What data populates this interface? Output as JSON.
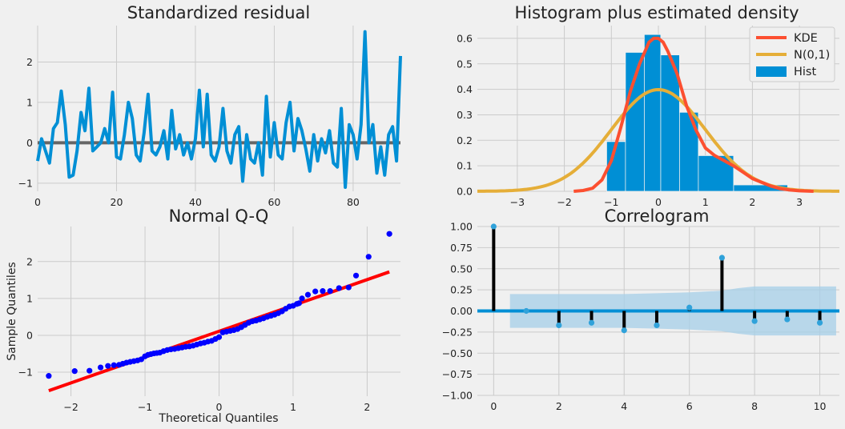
{
  "chart_data": [
    {
      "type": "line",
      "title": "Standardized residual",
      "xlabel": "",
      "ylabel": "",
      "xlim": [
        0,
        92
      ],
      "ylim": [
        -1.2,
        2.9
      ],
      "xticks": [
        0,
        20,
        40,
        60,
        80
      ],
      "yticks": [
        -1,
        0,
        1,
        2
      ],
      "grid": true,
      "colors": {
        "line": "#008fd5",
        "baseline": "#666666"
      },
      "x": [
        0,
        1,
        2,
        3,
        4,
        5,
        6,
        7,
        8,
        9,
        10,
        11,
        12,
        13,
        14,
        15,
        16,
        17,
        18,
        19,
        20,
        21,
        22,
        23,
        24,
        25,
        26,
        27,
        28,
        29,
        30,
        31,
        32,
        33,
        34,
        35,
        36,
        37,
        38,
        39,
        40,
        41,
        42,
        43,
        44,
        45,
        46,
        47,
        48,
        49,
        50,
        51,
        52,
        53,
        54,
        55,
        56,
        57,
        58,
        59,
        60,
        61,
        62,
        63,
        64,
        65,
        66,
        67,
        68,
        69,
        70,
        71,
        72,
        73,
        74,
        75,
        76,
        77,
        78,
        79,
        80,
        81,
        82,
        83,
        84,
        85,
        86,
        87,
        88,
        89,
        90,
        91,
        92
      ],
      "series": [
        {
          "values": [
            -0.45,
            0.1,
            -0.2,
            -0.5,
            0.35,
            0.5,
            1.28,
            0.45,
            -0.85,
            -0.8,
            -0.2,
            0.75,
            0.3,
            1.35,
            -0.2,
            -0.1,
            0.0,
            0.35,
            0.0,
            1.25,
            -0.35,
            -0.4,
            0.2,
            1.0,
            0.6,
            -0.3,
            -0.45,
            0.25,
            1.2,
            -0.2,
            -0.3,
            -0.1,
            0.3,
            -0.4,
            0.8,
            -0.15,
            0.2,
            -0.3,
            0.0,
            -0.4,
            0.1,
            1.3,
            -0.1,
            1.2,
            -0.3,
            -0.45,
            -0.1,
            0.85,
            -0.2,
            -0.5,
            0.2,
            0.4,
            -0.95,
            0.2,
            -0.4,
            -0.5,
            0.0,
            -0.8,
            1.15,
            -0.35,
            0.5,
            -0.3,
            -0.4,
            0.5,
            1.0,
            -0.2,
            0.6,
            0.3,
            -0.15,
            -0.7,
            0.2,
            -0.45,
            0.1,
            -0.25,
            0.3,
            -0.5,
            -0.6,
            0.85,
            -1.1,
            0.45,
            0.2,
            -0.4,
            0.45,
            2.75,
            0.0,
            0.45,
            -0.75,
            -0.1,
            -0.8,
            0.2,
            0.4,
            -0.45,
            2.15
          ]
        }
      ]
    },
    {
      "type": "bar",
      "title": "Histogram plus estimated density",
      "xlabel": "",
      "ylabel": "",
      "xlim": [
        -3.85,
        3.85
      ],
      "ylim": [
        0,
        0.65
      ],
      "xticks": [
        -3,
        -2,
        -1,
        0,
        1,
        2,
        3
      ],
      "yticks": [
        0.0,
        0.1,
        0.2,
        0.3,
        0.4,
        0.5,
        0.6
      ],
      "grid": true,
      "legend": "top-right",
      "legend_entries": [
        "KDE",
        "N(0,1)",
        "Hist"
      ],
      "colors": {
        "hist": "#008fd5",
        "kde": "#fc4f30",
        "norm": "#e5ae38"
      },
      "hist_bins": [
        {
          "x0": -1.1,
          "x1": -0.7,
          "value": 0.195
        },
        {
          "x0": -0.7,
          "x1": -0.3,
          "value": 0.545
        },
        {
          "x0": -0.3,
          "x1": 0.05,
          "value": 0.615
        },
        {
          "x0": 0.05,
          "x1": 0.45,
          "value": 0.535
        },
        {
          "x0": 0.45,
          "x1": 0.85,
          "value": 0.31
        },
        {
          "x0": 0.85,
          "x1": 1.6,
          "value": 0.14
        },
        {
          "x0": 1.6,
          "x1": 2.75,
          "value": 0.025
        }
      ],
      "kde": {
        "x": [
          -1.8,
          -1.6,
          -1.4,
          -1.2,
          -1.0,
          -0.8,
          -0.6,
          -0.4,
          -0.2,
          -0.1,
          0.0,
          0.1,
          0.2,
          0.4,
          0.6,
          0.8,
          1.0,
          1.2,
          1.4,
          1.6,
          1.8,
          2.0,
          2.2,
          2.4,
          2.6,
          2.8,
          3.0,
          3.3
        ],
        "y": [
          0.0,
          0.003,
          0.012,
          0.045,
          0.12,
          0.25,
          0.39,
          0.5,
          0.585,
          0.6,
          0.6,
          0.585,
          0.55,
          0.46,
          0.335,
          0.24,
          0.17,
          0.14,
          0.12,
          0.1,
          0.075,
          0.05,
          0.035,
          0.02,
          0.01,
          0.005,
          0.002,
          0.0
        ]
      },
      "norm": {
        "mean": 0,
        "sd": 1
      }
    },
    {
      "type": "scatter",
      "title": "Normal Q-Q",
      "xlabel": "Theoretical Quantiles",
      "ylabel": "Sample Quantiles",
      "xlim": [
        -2.45,
        2.45
      ],
      "ylim": [
        -1.65,
        2.95
      ],
      "xticks": [
        -2,
        -1,
        0,
        1,
        2
      ],
      "yticks": [
        -1,
        0,
        1,
        2
      ],
      "grid": true,
      "colors": {
        "points": "#0000ff",
        "line": "#ff0000"
      },
      "reference_line": {
        "x": [
          -2.3,
          2.3
        ],
        "y": [
          -1.5,
          1.72
        ]
      },
      "x": [
        -2.3,
        -1.95,
        -1.75,
        -1.6,
        -1.5,
        -1.42,
        -1.35,
        -1.3,
        -1.25,
        -1.2,
        -1.15,
        -1.1,
        -1.05,
        -1.0,
        -0.96,
        -0.92,
        -0.88,
        -0.84,
        -0.8,
        -0.75,
        -0.7,
        -0.65,
        -0.6,
        -0.55,
        -0.5,
        -0.45,
        -0.4,
        -0.35,
        -0.3,
        -0.25,
        -0.2,
        -0.15,
        -0.1,
        -0.05,
        0.0,
        0.05,
        0.1,
        0.15,
        0.2,
        0.25,
        0.3,
        0.35,
        0.4,
        0.45,
        0.5,
        0.55,
        0.6,
        0.65,
        0.7,
        0.75,
        0.8,
        0.85,
        0.9,
        0.95,
        1.0,
        1.05,
        1.08,
        1.12,
        1.2,
        1.3,
        1.4,
        1.5,
        1.62,
        1.75,
        1.85,
        2.02,
        2.3
      ],
      "y": [
        -1.1,
        -0.97,
        -0.96,
        -0.87,
        -0.83,
        -0.81,
        -0.8,
        -0.77,
        -0.74,
        -0.72,
        -0.7,
        -0.68,
        -0.65,
        -0.57,
        -0.53,
        -0.51,
        -0.49,
        -0.48,
        -0.47,
        -0.43,
        -0.4,
        -0.38,
        -0.37,
        -0.35,
        -0.33,
        -0.31,
        -0.3,
        -0.28,
        -0.25,
        -0.22,
        -0.2,
        -0.17,
        -0.15,
        -0.1,
        -0.05,
        0.08,
        0.1,
        0.12,
        0.14,
        0.17,
        0.22,
        0.28,
        0.34,
        0.38,
        0.4,
        0.43,
        0.46,
        0.5,
        0.53,
        0.56,
        0.6,
        0.65,
        0.72,
        0.78,
        0.8,
        0.85,
        0.87,
        1.0,
        1.1,
        1.19,
        1.2,
        1.2,
        1.28,
        1.3,
        1.62,
        2.13,
        2.75
      ]
    },
    {
      "type": "bar",
      "title": "Correlogram",
      "xlabel": "",
      "ylabel": "",
      "xlim": [
        -0.5,
        10.6
      ],
      "ylim": [
        -1.0,
        1.0
      ],
      "xticks": [
        0,
        2,
        4,
        6,
        8,
        10
      ],
      "yticks": [
        1.0,
        0.75,
        0.5,
        0.25,
        0.0,
        -0.25,
        -0.5,
        -0.75,
        -1.0
      ],
      "ytick_labels": [
        "1.00",
        "0.75",
        "0.50",
        "0.25",
        "0.00",
        "−0.25",
        "−0.50",
        "−0.75",
        "−1.00"
      ],
      "grid": true,
      "colors": {
        "stem": "#000000",
        "marker": "#30a2da",
        "band": "#a6cfe8",
        "zero": "#008fd5"
      },
      "lags": [
        0,
        1,
        2,
        3,
        4,
        5,
        6,
        7,
        8,
        9,
        10
      ],
      "values": [
        1.0,
        0.0,
        -0.17,
        -0.14,
        -0.23,
        -0.17,
        0.04,
        0.63,
        -0.12,
        -0.1,
        -0.14
      ],
      "confidence_band": {
        "x": [
          0.5,
          1,
          2,
          3,
          4,
          5,
          6,
          7,
          7.5,
          8,
          9,
          10,
          10.5
        ],
        "upper": [
          0.2,
          0.2,
          0.2,
          0.2,
          0.2,
          0.21,
          0.22,
          0.24,
          0.27,
          0.29,
          0.29,
          0.29,
          0.29
        ]
      }
    }
  ]
}
